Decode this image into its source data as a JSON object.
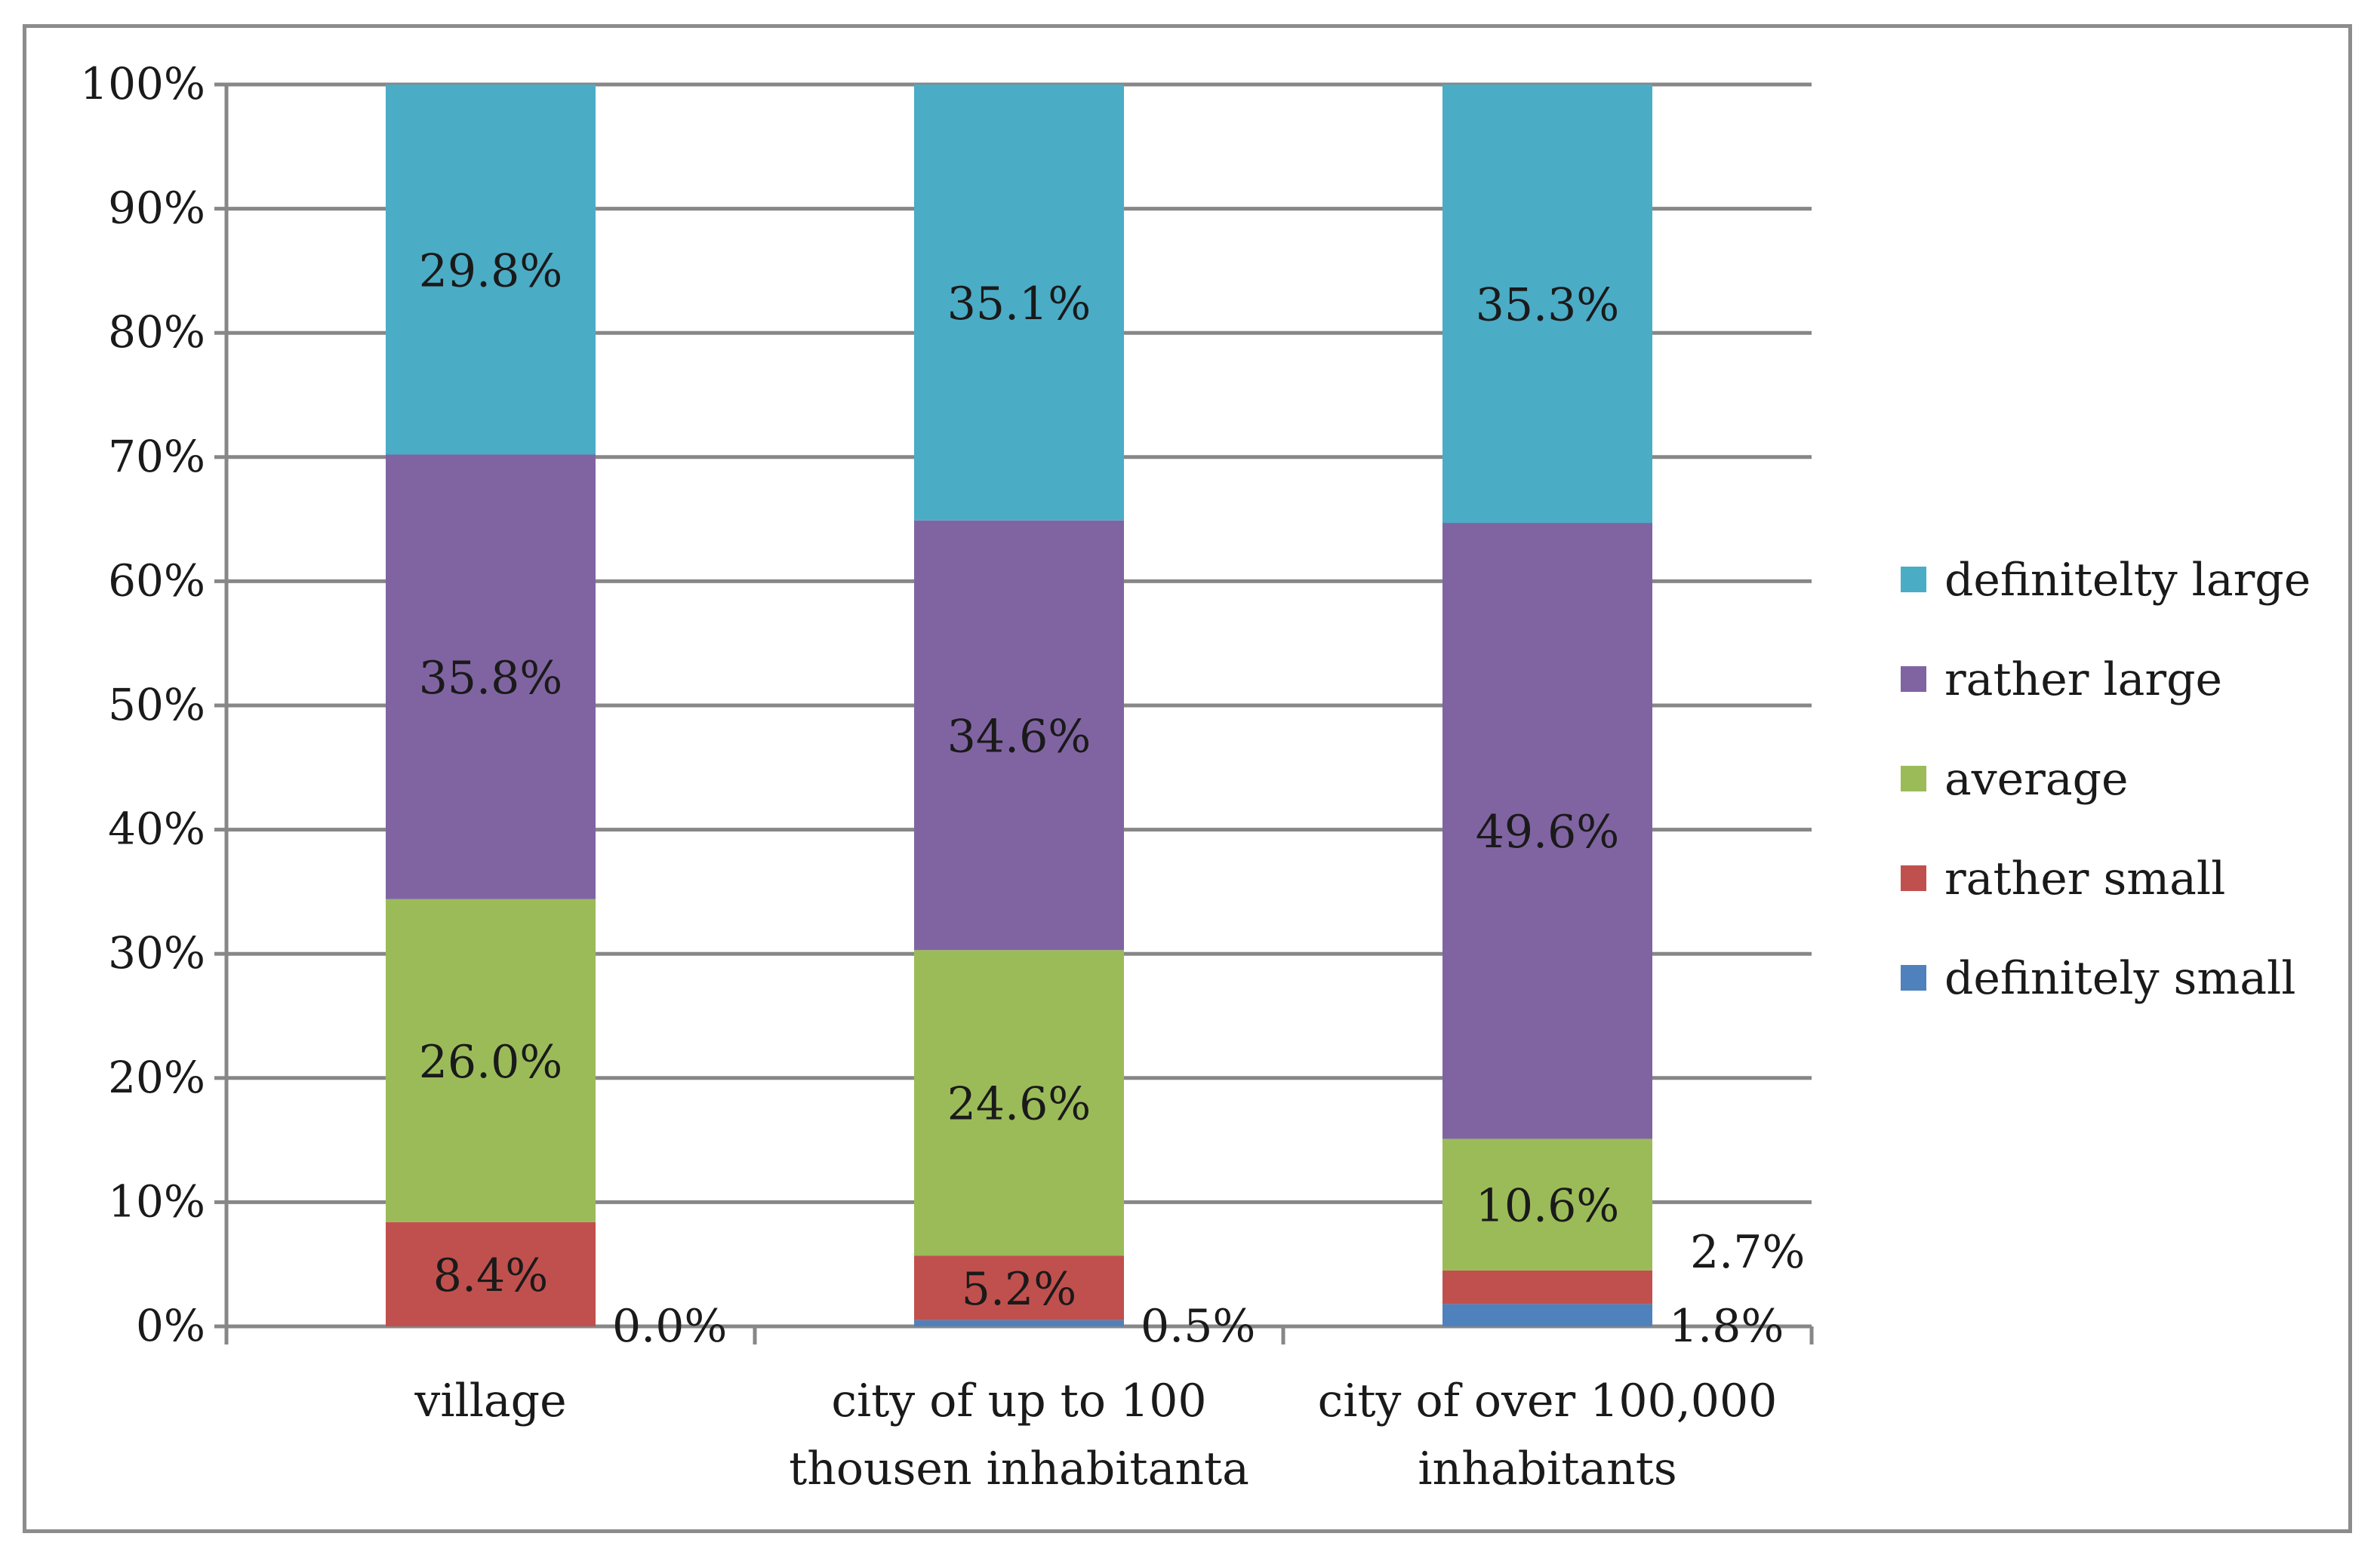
{
  "chart_data": {
    "type": "bar",
    "stacked": true,
    "percent": true,
    "title": "",
    "xlabel": "",
    "ylabel": "",
    "ylim": [
      0,
      100
    ],
    "yticks": [
      "0%",
      "10%",
      "20%",
      "30%",
      "40%",
      "50%",
      "60%",
      "70%",
      "80%",
      "90%",
      "100%"
    ],
    "grid": true,
    "legend_position": "right",
    "categories": [
      [
        "village"
      ],
      [
        "city of up to 100",
        "thousen inhabitanta"
      ],
      [
        "city of over 100,000",
        "inhabitants"
      ]
    ],
    "series": [
      {
        "name": "definitely small",
        "color": "#4f81bd",
        "values": [
          0.0,
          0.5,
          1.8
        ],
        "labels": [
          "0.0%",
          "0.5%",
          "1.8%"
        ]
      },
      {
        "name": "rather small",
        "color": "#c0504d",
        "values": [
          8.4,
          5.2,
          2.7
        ],
        "labels": [
          "8.4%",
          "5.2%",
          "2.7%"
        ]
      },
      {
        "name": "average",
        "color": "#9bbb59",
        "values": [
          26.0,
          24.6,
          10.6
        ],
        "labels": [
          "26.0%",
          "24.6%",
          "10.6%"
        ]
      },
      {
        "name": "rather large",
        "color": "#8064a2",
        "values": [
          35.8,
          34.6,
          49.6
        ],
        "labels": [
          "35.8%",
          "34.6%",
          "49.6%"
        ]
      },
      {
        "name": "definitelty large",
        "color": "#4bacc6",
        "values": [
          29.8,
          35.1,
          35.3
        ],
        "labels": [
          "29.8%",
          "35.1%",
          "35.3%"
        ]
      }
    ],
    "legend_order": [
      "definitelty large",
      "rather large",
      "average",
      "rather small",
      "definitely small"
    ]
  }
}
